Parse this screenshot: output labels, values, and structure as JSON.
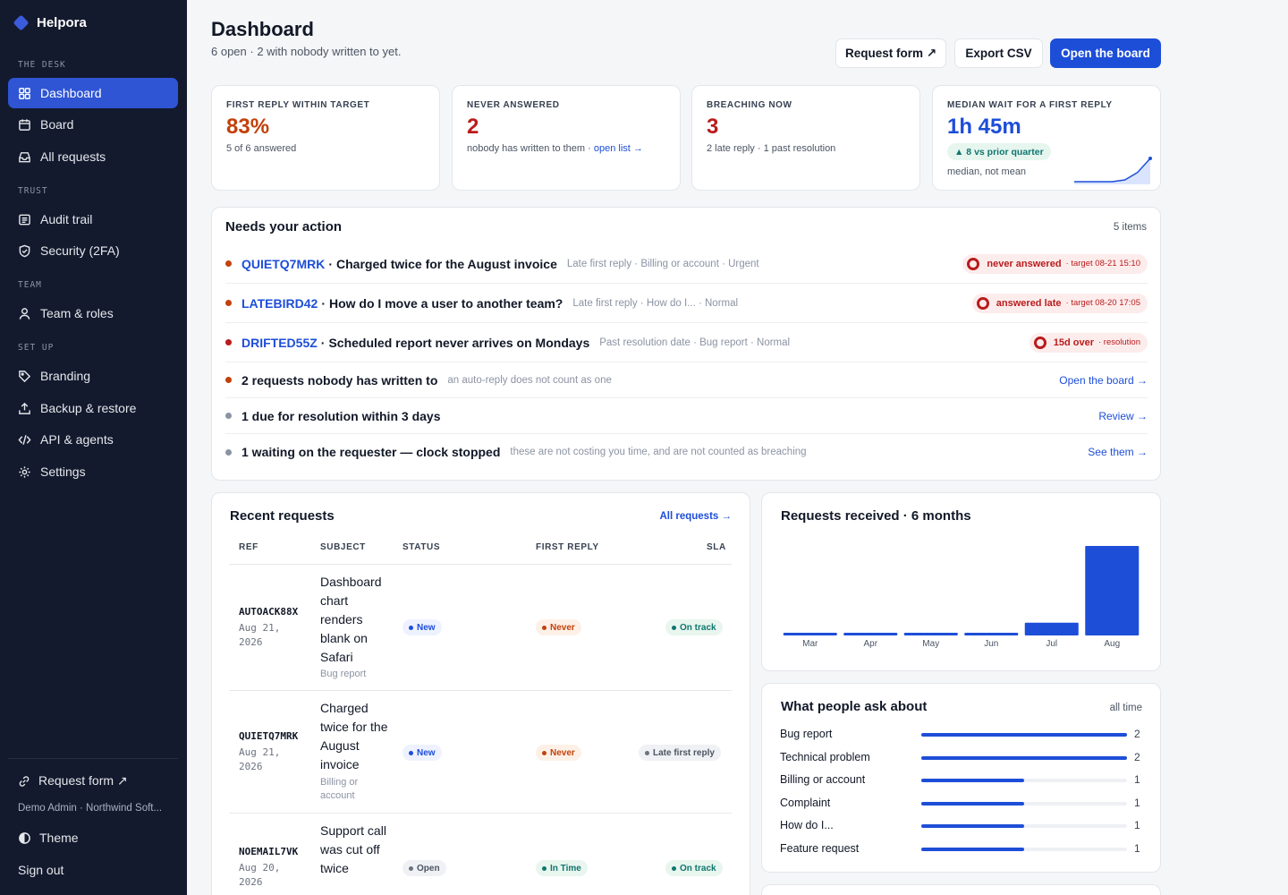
{
  "app": {
    "name": "Helpora"
  },
  "sidebar": {
    "sections": [
      "THE DESK",
      "TRUST",
      "TEAM",
      "SET UP"
    ],
    "items": [
      {
        "label": "Dashboard",
        "icon": "grid-icon",
        "active": true
      },
      {
        "label": "Board",
        "icon": "calendar-icon"
      },
      {
        "label": "All requests",
        "icon": "inbox-icon"
      },
      {
        "label": "Audit trail",
        "icon": "list-icon"
      },
      {
        "label": "Security (2FA)",
        "icon": "shield-icon"
      },
      {
        "label": "Team & roles",
        "icon": "user-icon"
      },
      {
        "label": "Branding",
        "icon": "tag-icon"
      },
      {
        "label": "Backup & restore",
        "icon": "upload-icon"
      },
      {
        "label": "API & agents",
        "icon": "code-icon"
      },
      {
        "label": "Settings",
        "icon": "gear-icon"
      }
    ],
    "request_form": "Request form ↗",
    "user": "Demo Admin · Northwind Soft...",
    "theme": "Theme",
    "sign_out": "Sign out"
  },
  "header": {
    "title": "Dashboard",
    "subtitle": "6 open · 2 with nobody written to yet.",
    "buttons": {
      "request_form": "Request form ↗",
      "export": "Export CSV",
      "open_board": "Open the board"
    }
  },
  "stats": [
    {
      "label": "FIRST REPLY WITHIN TARGET",
      "value": "83%",
      "note": "5 of 6 answered",
      "color": "#c2410c"
    },
    {
      "label": "NEVER ANSWERED",
      "value": "2",
      "note": "nobody has written to them ·",
      "link": "open list →",
      "color": "#b91c1c"
    },
    {
      "label": "BREACHING NOW",
      "value": "3",
      "note": "2 late reply · 1 past resolution",
      "color": "#b91c1c"
    },
    {
      "label": "MEDIAN WAIT FOR A FIRST REPLY",
      "value": "1h 45m",
      "delta": "▲ 8 vs prior quarter",
      "note": "median, not mean",
      "color": "#1d4ed8"
    }
  ],
  "actions": {
    "title": "Needs your action",
    "count": "5 items",
    "rows": [
      {
        "ref": "QUIETQ7MRK",
        "subject": "Charged twice for the August invoice",
        "meta": "Late first reply · Billing or account · Urgent",
        "pill": "never answered",
        "pill_sub": "· target 08-21 15:10",
        "dot": "#c2410c"
      },
      {
        "ref": "LATEBIRD42",
        "subject": "How do I move a user to another team?",
        "meta": "Late first reply · How do I... · Normal",
        "pill": "answered late",
        "pill_sub": "· target 08-20 17:05",
        "dot": "#c2410c"
      },
      {
        "ref": "DRIFTED55Z",
        "subject": "Scheduled report never arrives on Mondays",
        "meta": "Past resolution date · Bug report · Normal",
        "pill": "15d over",
        "pill_sub": "· resolution",
        "dot": "#b91c1c"
      },
      {
        "subject": "2 requests nobody has written to",
        "meta": "an auto-reply does not count as one",
        "link": "Open the board →",
        "dot": "#c2410c"
      },
      {
        "subject": "1 due for resolution within 3 days",
        "link": "Review →",
        "dot": "#8b93a3"
      },
      {
        "subject": "1 waiting on the requester — clock stopped",
        "meta": "these are not costing you time, and are not counted as breaching",
        "link": "See them →",
        "dot": "#8b93a3"
      }
    ]
  },
  "recent": {
    "title": "Recent requests",
    "link": "All requests →",
    "headers": [
      "REF",
      "SUBJECT",
      "STATUS",
      "FIRST REPLY",
      "SLA"
    ],
    "rows": [
      {
        "ref": "AUTOACK88X",
        "date": "Aug 21, 2026",
        "subject": "Dashboard chart renders blank on Safari",
        "category": "Bug report",
        "status": "New",
        "first_reply": "Never",
        "sla": "On track"
      },
      {
        "ref": "QUIETQ7MRK",
        "date": "Aug 21, 2026",
        "subject": "Charged twice for the August invoice",
        "category": "Billing or account",
        "status": "New",
        "first_reply": "Never",
        "sla": "Late first reply"
      },
      {
        "ref": "NOEMAIL7VK",
        "date": "Aug 20, 2026",
        "subject": "Support call was cut off twice",
        "category": "",
        "status": "Open",
        "first_reply": "In Time",
        "sla": "On track"
      }
    ]
  },
  "chart_data": {
    "type": "bar",
    "title": "Requests received · 6 months",
    "categories": [
      "Mar",
      "Apr",
      "May",
      "Jun",
      "Jul",
      "Aug"
    ],
    "values": [
      0,
      0,
      0,
      0,
      1,
      7
    ],
    "color": "#1d4ed8",
    "ylim": [
      0,
      7
    ],
    "grid": false
  },
  "topics": {
    "title": "What people ask about",
    "scope": "all time",
    "max": 2,
    "items": [
      {
        "label": "Bug report",
        "count": 2
      },
      {
        "label": "Technical problem",
        "count": 2
      },
      {
        "label": "Billing or account",
        "count": 1
      },
      {
        "label": "Complaint",
        "count": 1
      },
      {
        "label": "How do I...",
        "count": 1
      },
      {
        "label": "Feature request",
        "count": 1
      }
    ]
  },
  "sparkline": {
    "values": [
      1,
      1,
      1,
      1,
      1.3,
      2.6,
      5
    ]
  }
}
